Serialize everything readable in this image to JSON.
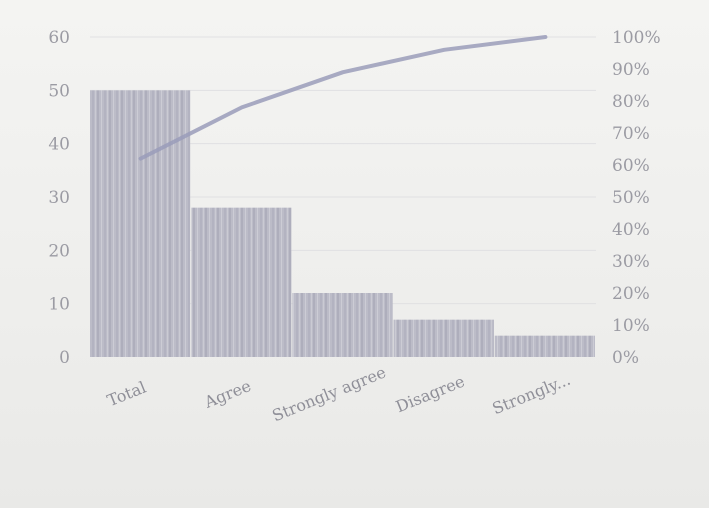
{
  "chart_data": {
    "type": "bar",
    "categories": [
      "Total",
      "Agree",
      "Strongly agree",
      "Disagree",
      "Strongly..."
    ],
    "series": [
      {
        "type": "bar",
        "values": [
          50,
          28,
          12,
          7,
          4
        ]
      },
      {
        "type": "line",
        "axis": "right",
        "values": [
          0.62,
          0.78,
          0.89,
          0.96,
          1.0
        ]
      }
    ],
    "left_axis": {
      "ylim": [
        0,
        60
      ],
      "tick_values": [
        0,
        10,
        20,
        30,
        40,
        50,
        60
      ],
      "tick_labels": [
        "0",
        "10",
        "20",
        "30",
        "40",
        "50",
        "60"
      ]
    },
    "right_axis": {
      "ylim": [
        0,
        1
      ],
      "tick_values": [
        0,
        0.1,
        0.2,
        0.3,
        0.4,
        0.5,
        0.6,
        0.7,
        0.8,
        0.9,
        1.0
      ],
      "tick_labels": [
        "0%",
        "10%",
        "20%",
        "30%",
        "40%",
        "50%",
        "60%",
        "70%",
        "80%",
        "90%",
        "100%"
      ]
    },
    "grid": true,
    "colors": {
      "bar": "#b9b9c5",
      "line": "#9a9cba",
      "text": "#9b9ba3"
    }
  }
}
